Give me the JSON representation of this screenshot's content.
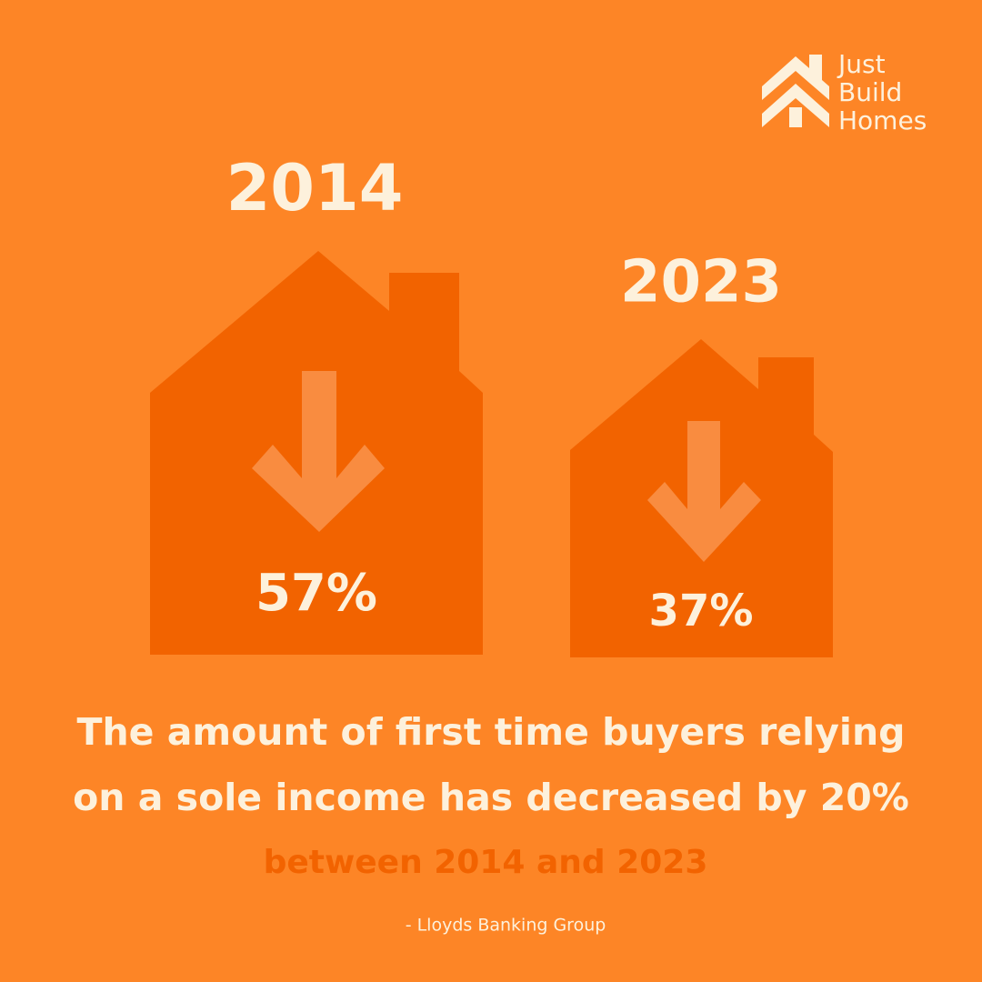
{
  "logo": {
    "lines": [
      "Just",
      "Build",
      "Homes"
    ]
  },
  "items": [
    {
      "year": "2014",
      "value": "57%"
    },
    {
      "year": "2023",
      "value": "37%"
    }
  ],
  "headline": {
    "lines": [
      "The amount of first time buyers relying",
      "on a sole income has decreased by 20%"
    ],
    "highlight": "between 2014 and 2023"
  },
  "source": "- Lloyds Banking Group"
}
